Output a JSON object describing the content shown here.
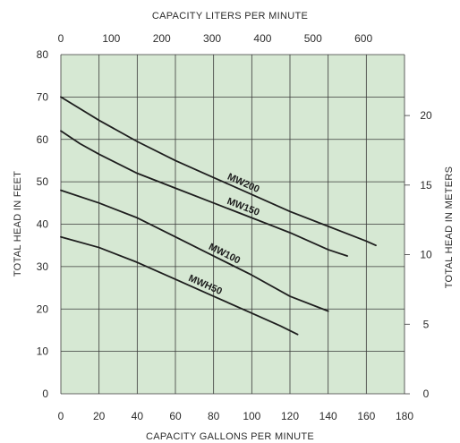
{
  "chart_data": {
    "type": "line",
    "xlabel": "CAPACITY GALLONS PER MINUTE",
    "ylabel": "TOTAL HEAD IN FEET",
    "x2label": "CAPACITY LITERS PER MINUTE",
    "y2label": "TOTAL HEAD IN METERS",
    "xlim": [
      0,
      180
    ],
    "ylim": [
      0,
      80
    ],
    "x2lim": [
      0,
      681.4
    ],
    "y2lim": [
      0,
      24.38
    ],
    "xticks": [
      0,
      20,
      40,
      60,
      80,
      100,
      120,
      140,
      160,
      180
    ],
    "yticks": [
      0,
      10,
      20,
      30,
      40,
      50,
      60,
      70,
      80
    ],
    "x2ticks": [
      0,
      100,
      200,
      300,
      400,
      500,
      600
    ],
    "y2ticks": [
      0,
      5,
      10,
      15,
      20
    ],
    "grid": true,
    "plot_background": "#d6e8d3",
    "line_color": "#1e1e1e",
    "series": [
      {
        "name": "MW200",
        "x": [
          0,
          20,
          40,
          60,
          80,
          100,
          120,
          140,
          160,
          165
        ],
        "y": [
          70,
          64.5,
          59.5,
          55,
          51,
          47,
          43,
          39.5,
          36,
          35
        ]
      },
      {
        "name": "MW150",
        "x": [
          0,
          10,
          20,
          40,
          60,
          80,
          100,
          120,
          140,
          150
        ],
        "y": [
          62,
          59,
          56.5,
          52,
          48.5,
          45,
          41.5,
          38,
          34,
          32.5
        ]
      },
      {
        "name": "MW100",
        "x": [
          0,
          20,
          40,
          60,
          80,
          100,
          120,
          140
        ],
        "y": [
          48,
          45,
          41.5,
          37,
          32.5,
          28,
          23,
          19.5
        ]
      },
      {
        "name": "MWH50",
        "x": [
          0,
          20,
          40,
          60,
          80,
          100,
          115,
          124
        ],
        "y": [
          37,
          34.5,
          31,
          27,
          23,
          19,
          16,
          14
        ]
      }
    ]
  }
}
